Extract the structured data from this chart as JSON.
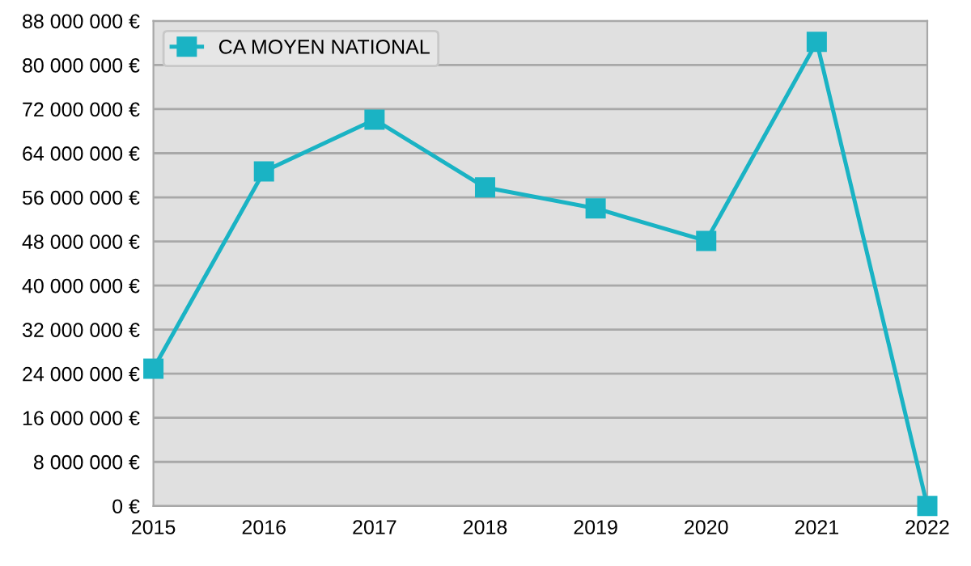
{
  "chart_data": {
    "type": "line",
    "x": [
      2015,
      2016,
      2017,
      2018,
      2019,
      2020,
      2021,
      2022
    ],
    "series": [
      {
        "name": "CA MOYEN NATIONAL",
        "color": "#1ab3c4",
        "values": [
          24900000,
          60700000,
          70100000,
          57800000,
          54000000,
          48100000,
          84200000,
          0
        ]
      }
    ],
    "xlim": [
      2015,
      2022
    ],
    "xticks": [
      2015,
      2016,
      2017,
      2018,
      2019,
      2020,
      2021,
      2022
    ],
    "ylim": [
      0,
      88000000
    ],
    "yticks": [
      {
        "value": 0,
        "label": "0 €"
      },
      {
        "value": 8000000,
        "label": "8 000 000 €"
      },
      {
        "value": 16000000,
        "label": "16 000 000 €"
      },
      {
        "value": 24000000,
        "label": "24 000 000 €"
      },
      {
        "value": 32000000,
        "label": "32 000 000 €"
      },
      {
        "value": 40000000,
        "label": "40 000 000 €"
      },
      {
        "value": 48000000,
        "label": "48 000 000 €"
      },
      {
        "value": 56000000,
        "label": "56 000 000 €"
      },
      {
        "value": 64000000,
        "label": "64 000 000 €"
      },
      {
        "value": 72000000,
        "label": "72 000 000 €"
      },
      {
        "value": 80000000,
        "label": "80 000 000 €"
      },
      {
        "value": 88000000,
        "label": "88 000 000 €"
      }
    ],
    "grid": "y",
    "legend": "top left",
    "marker": "square",
    "line_style": "solid"
  }
}
